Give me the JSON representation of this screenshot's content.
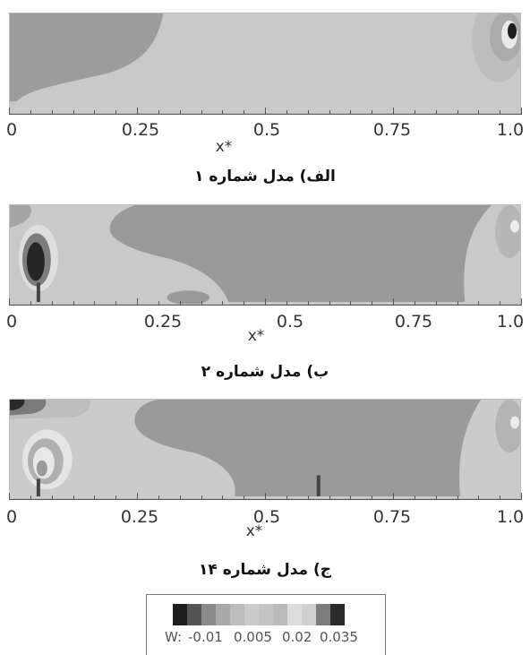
{
  "xaxis": {
    "label": "x*",
    "ticks": [
      "0",
      "0.25",
      "0.5",
      "0.75",
      "1.0"
    ]
  },
  "panels": [
    {
      "caption": "الف) مدل شماره ۱"
    },
    {
      "caption": "ب) مدل شماره ۲"
    },
    {
      "caption": "ج) مدل شماره ۱۴"
    }
  ],
  "legend": {
    "variable": "W:",
    "values": [
      "-0.01",
      "0.005",
      "0.02",
      "0.035"
    ],
    "colors": [
      "#1e1e1e",
      "#555555",
      "#8a8a8a",
      "#a8a8a8",
      "#bdbdbd",
      "#cccccc",
      "#c4c4c4",
      "#bababa",
      "#dcdcdc",
      "#cfcfcf",
      "#7c7c7c",
      "#2a2a2a"
    ]
  }
}
